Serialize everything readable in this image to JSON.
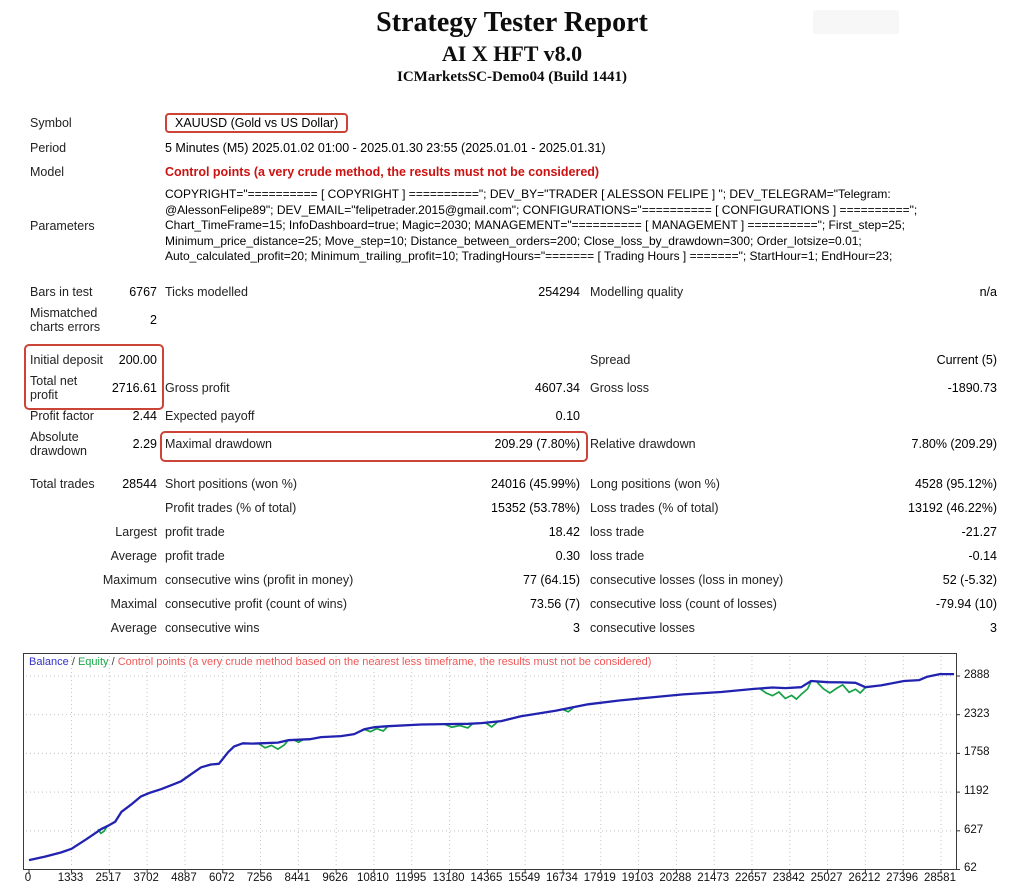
{
  "header": {
    "title": "Strategy Tester Report",
    "subtitle": "AI X HFT v8.0",
    "broker": "ICMarketsSC-Demo04 (Build 1441)"
  },
  "info": {
    "symbol_label": "Symbol",
    "symbol_value": "XAUUSD (Gold vs US Dollar)",
    "period_label": "Period",
    "period_value": "5 Minutes (M5) 2025.01.02 01:00 - 2025.01.30 23:55 (2025.01.01 - 2025.01.31)",
    "model_label": "Model",
    "model_value": "Control points (a very crude method, the results must not be considered)",
    "parameters_label": "Parameters",
    "parameters_lines": [
      "COPYRIGHT=\"========== [ COPYRIGHT ] ==========\"; DEV_BY=\"TRADER [ ALESSON FELIPE ] \"; DEV_TELEGRAM=\"Telegram:",
      "@AlessonFelipe89\"; DEV_EMAIL=\"felipetrader.2015@gmail.com\"; CONFIGURATIONS=\"========== [ CONFIGURATIONS ] ==========\";",
      "Chart_TimeFrame=15; InfoDashboard=true; Magic=2030; MANAGEMENT=\"========== [ MANAGEMENT ] ==========\"; First_step=25;",
      "Minimum_price_distance=25; Move_step=10; Distance_between_orders=200; Close_loss_by_drawdown=300; Order_lotsize=0.01;",
      "Auto_calculated_profit=20; Minimum_trailing_profit=10; TradingHours=\"======= [ Trading Hours ] =======\"; StartHour=1; EndHour=23;"
    ]
  },
  "stats": {
    "rows": [
      {
        "c1": "Bars in test",
        "c2": "6767",
        "c3": "Ticks modelled",
        "c4": "254294",
        "c5": "Modelling quality",
        "c6": "n/a",
        "cls": ""
      },
      {
        "c1": "Mismatched\ncharts errors",
        "c2": "2",
        "c3": "",
        "c4": "",
        "c5": "",
        "c6": "",
        "cls": "tall"
      },
      {
        "c1": "Initial deposit",
        "c2": "200.00",
        "c3": "",
        "c4": "",
        "c5": "Spread",
        "c6": "Current (5)",
        "cls": "gap"
      },
      {
        "c1": "Total net\nprofit",
        "c2": "2716.61",
        "c3": "Gross profit",
        "c4": "4607.34",
        "c5": "Gross loss",
        "c6": "-1890.73",
        "cls": "tall"
      },
      {
        "c1": "Profit factor",
        "c2": "2.44",
        "c3": "Expected payoff",
        "c4": "0.10",
        "c5": "",
        "c6": "",
        "cls": ""
      },
      {
        "c1": "Absolute\ndrawdown",
        "c2": "2.29",
        "c3": "Maximal drawdown",
        "c4": "209.29 (7.80%)",
        "c5": "Relative drawdown",
        "c6": "7.80% (209.29)",
        "cls": "tall"
      },
      {
        "c1": "Total trades",
        "c2": "28544",
        "c3": "Short positions (won %)",
        "c4": "24016 (45.99%)",
        "c5": "Long positions (won %)",
        "c6": "4528 (95.12%)",
        "cls": "gap"
      },
      {
        "c1": "",
        "c2": "",
        "c3": "Profit trades (% of total)",
        "c4": "15352 (53.78%)",
        "c5": "Loss trades (% of total)",
        "c6": "13192 (46.22%)",
        "cls": ""
      },
      {
        "c1": "Largest",
        "c2": "",
        "c3": "profit trade",
        "c4": "18.42",
        "c5": "loss trade",
        "c6": "-21.27",
        "cls": "r"
      },
      {
        "c1": "Average",
        "c2": "",
        "c3": "profit trade",
        "c4": "0.30",
        "c5": "loss trade",
        "c6": "-0.14",
        "cls": "r"
      },
      {
        "c1": "Maximum",
        "c2": "",
        "c3": "consecutive wins (profit in money)",
        "c4": "77 (64.15)",
        "c5": "consecutive losses (loss in money)",
        "c6": "52 (-5.32)",
        "cls": "r"
      },
      {
        "c1": "Maximal",
        "c2": "",
        "c3": "consecutive profit (count of wins)",
        "c4": "73.56 (7)",
        "c5": "consecutive loss (count of losses)",
        "c6": "-79.94 (10)",
        "cls": "r"
      },
      {
        "c1": "Average",
        "c2": "",
        "c3": "consecutive wins",
        "c4": "3",
        "c5": "consecutive losses",
        "c6": "3",
        "cls": "r"
      }
    ]
  },
  "colors": {
    "balance": "#2222b0",
    "equity": "#16a244",
    "warning_text": "#f05858",
    "highlight_box": "#cc4437",
    "model_text": "#cc1111",
    "grid": "#c4c4c4"
  },
  "chart_data": {
    "type": "line",
    "title": "",
    "legend_sep": " / ",
    "legend": [
      {
        "label": "Balance",
        "color": "#3030c8"
      },
      {
        "label": "Equity",
        "color": "#18a848"
      },
      {
        "label": "Control points (a very crude method based on the nearest less timeframe, the results must not be considered)",
        "color": "#f05858"
      }
    ],
    "x_axis": {
      "ticks": [
        0,
        1333,
        2517,
        3702,
        4887,
        6072,
        7256,
        8441,
        9626,
        10810,
        11995,
        13180,
        14365,
        15549,
        16734,
        17919,
        19103,
        20288,
        21473,
        22657,
        23842,
        25027,
        26212,
        27396,
        28581
      ],
      "min": 0,
      "max": 28581
    },
    "y_axis": {
      "ticks": [
        62,
        627,
        1192,
        1758,
        2323,
        2888
      ],
      "min": 62,
      "max": 2950
    },
    "grid": true,
    "legend_position": "top-left",
    "series": [
      {
        "name": "Balance",
        "color": "#2222b0",
        "points": [
          [
            0,
            200
          ],
          [
            500,
            250
          ],
          [
            1000,
            310
          ],
          [
            1333,
            365
          ],
          [
            1800,
            505
          ],
          [
            2100,
            600
          ],
          [
            2257,
            650
          ],
          [
            2450,
            695
          ],
          [
            2700,
            760
          ],
          [
            2900,
            905
          ],
          [
            3200,
            1010
          ],
          [
            3511,
            1130
          ],
          [
            3800,
            1185
          ],
          [
            4138,
            1235
          ],
          [
            4500,
            1300
          ],
          [
            4765,
            1350
          ],
          [
            5100,
            1460
          ],
          [
            5392,
            1555
          ],
          [
            5700,
            1595
          ],
          [
            5950,
            1605
          ],
          [
            6240,
            1775
          ],
          [
            6428,
            1860
          ],
          [
            6700,
            1905
          ],
          [
            7000,
            1900
          ],
          [
            7256,
            1905
          ],
          [
            7800,
            1915
          ],
          [
            8120,
            1950
          ],
          [
            8800,
            1965
          ],
          [
            9155,
            1995
          ],
          [
            9782,
            2010
          ],
          [
            10190,
            2040
          ],
          [
            10504,
            2110
          ],
          [
            10817,
            2140
          ],
          [
            11255,
            2155
          ],
          [
            12290,
            2180
          ],
          [
            13010,
            2185
          ],
          [
            13763,
            2190
          ],
          [
            14170,
            2200
          ],
          [
            14797,
            2230
          ],
          [
            15420,
            2300
          ],
          [
            16500,
            2380
          ],
          [
            17520,
            2475
          ],
          [
            18500,
            2530
          ],
          [
            19590,
            2580
          ],
          [
            20500,
            2620
          ],
          [
            21690,
            2655
          ],
          [
            22725,
            2700
          ],
          [
            23300,
            2720
          ],
          [
            23700,
            2712
          ],
          [
            24200,
            2725
          ],
          [
            24510,
            2815
          ],
          [
            25027,
            2798
          ],
          [
            25500,
            2795
          ],
          [
            25900,
            2788
          ],
          [
            26212,
            2725
          ],
          [
            26700,
            2750
          ],
          [
            27420,
            2815
          ],
          [
            27900,
            2828
          ],
          [
            28150,
            2878
          ],
          [
            28544,
            2916
          ]
        ]
      },
      {
        "name": "Equity",
        "color": "#16a244",
        "segments": [
          [
            [
              2160,
              650
            ],
            [
              2250,
              590
            ],
            [
              2350,
              620
            ],
            [
              2450,
              695
            ]
          ],
          [
            [
              7180,
              1905
            ],
            [
              7400,
              1840
            ],
            [
              7600,
              1875
            ],
            [
              7800,
              1820
            ],
            [
              8000,
              1880
            ],
            [
              8120,
              1950
            ]
          ],
          [
            [
              8300,
              1955
            ],
            [
              8450,
              1920
            ],
            [
              8600,
              1962
            ]
          ],
          [
            [
              10504,
              2110
            ],
            [
              10700,
              2075
            ],
            [
              10900,
              2120
            ],
            [
              11100,
              2085
            ],
            [
              11255,
              2155
            ]
          ],
          [
            [
              13010,
              2185
            ],
            [
              13250,
              2140
            ],
            [
              13500,
              2165
            ],
            [
              13750,
              2130
            ],
            [
              13900,
              2190
            ]
          ],
          [
            [
              14300,
              2205
            ],
            [
              14500,
              2145
            ],
            [
              14700,
              2225
            ]
          ],
          [
            [
              16750,
              2395
            ],
            [
              16900,
              2365
            ],
            [
              17050,
              2420
            ]
          ],
          [
            [
              22900,
              2705
            ],
            [
              23100,
              2640
            ],
            [
              23300,
              2600
            ],
            [
              23500,
              2655
            ],
            [
              23700,
              2560
            ],
            [
              23900,
              2605
            ],
            [
              24050,
              2550
            ],
            [
              24200,
              2620
            ],
            [
              24400,
              2700
            ],
            [
              24510,
              2810
            ]
          ],
          [
            [
              24700,
              2795
            ],
            [
              24900,
              2700
            ],
            [
              25100,
              2640
            ],
            [
              25300,
              2705
            ],
            [
              25500,
              2760
            ],
            [
              25700,
              2650
            ],
            [
              25900,
              2695
            ],
            [
              26050,
              2640
            ],
            [
              26212,
              2720
            ]
          ]
        ]
      }
    ]
  }
}
